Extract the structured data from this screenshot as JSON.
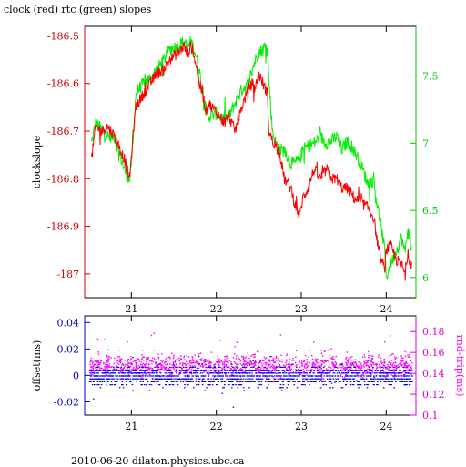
{
  "title": "clock (red) rtc (green) slopes",
  "footer": "2010-06-20 dilaton.physics.ubc.ca",
  "chart_data": [
    {
      "type": "line",
      "xlabel": "",
      "ylabel": "clockslope",
      "ylim": [
        -187.05,
        -186.48
      ],
      "y2lim": [
        5.85,
        7.87
      ],
      "xlim": [
        20.45,
        24.35
      ],
      "x_ticks": [
        21,
        22,
        23,
        24
      ],
      "x_tick_labels": [
        "21",
        "22",
        "23",
        "24"
      ],
      "y_ticks": [
        -186.5,
        -186.6,
        -186.7,
        -186.8,
        -186.9,
        -187
      ],
      "y_tick_labels": [
        "-186.5",
        "-186.6",
        "-186.7",
        "-186.8",
        "-186.9",
        "-187"
      ],
      "y2_ticks": [
        7.5,
        7,
        6.5,
        6
      ],
      "y2_tick_labels": [
        "7.5",
        "7",
        "6.5",
        "6"
      ],
      "series": [
        {
          "name": "clock",
          "axis": "left",
          "x": [
            20.53,
            20.58,
            20.65,
            20.72,
            20.8,
            20.85,
            20.92,
            20.98,
            21.02,
            21.05,
            21.08,
            21.15,
            21.22,
            21.3,
            21.38,
            21.45,
            21.52,
            21.58,
            21.62,
            21.66,
            21.7,
            21.75,
            21.8,
            21.85,
            21.88,
            21.9,
            22.0,
            22.08,
            22.15,
            22.22,
            22.3,
            22.38,
            22.42,
            22.46,
            22.5,
            22.55,
            22.6,
            22.62,
            22.66,
            22.7,
            22.75,
            22.8,
            22.88,
            22.92,
            22.98,
            23.02,
            23.08,
            23.15,
            23.22,
            23.3,
            23.36,
            23.42,
            23.48,
            23.55,
            23.62,
            23.7,
            23.78,
            23.85,
            23.92,
            23.98,
            24.0,
            24.05,
            24.12,
            24.18,
            24.22,
            24.25,
            24.3
          ],
          "y": [
            -186.76,
            -186.69,
            -186.7,
            -186.69,
            -186.71,
            -186.73,
            -186.76,
            -186.8,
            -186.71,
            -186.65,
            -186.64,
            -186.62,
            -186.6,
            -186.58,
            -186.57,
            -186.55,
            -186.54,
            -186.53,
            -186.52,
            -186.54,
            -186.52,
            -186.55,
            -186.6,
            -186.63,
            -186.66,
            -186.64,
            -186.66,
            -186.68,
            -186.67,
            -186.7,
            -186.65,
            -186.61,
            -186.6,
            -186.61,
            -186.58,
            -186.6,
            -186.62,
            -186.7,
            -186.72,
            -186.73,
            -186.75,
            -186.8,
            -186.82,
            -186.85,
            -186.88,
            -186.84,
            -186.82,
            -186.78,
            -186.8,
            -186.78,
            -186.8,
            -186.8,
            -186.82,
            -186.82,
            -186.84,
            -186.85,
            -186.86,
            -186.88,
            -186.96,
            -186.99,
            -186.95,
            -186.94,
            -186.97,
            -186.98,
            -187.0,
            -186.96,
            -186.98
          ]
        },
        {
          "name": "rtc",
          "axis": "right",
          "x": [
            20.53,
            20.58,
            20.65,
            20.72,
            20.8,
            20.85,
            20.92,
            20.98,
            21.02,
            21.05,
            21.08,
            21.15,
            21.22,
            21.3,
            21.38,
            21.45,
            21.52,
            21.58,
            21.62,
            21.66,
            21.7,
            21.75,
            21.8,
            21.85,
            21.88,
            21.9,
            22.0,
            22.08,
            22.15,
            22.22,
            22.3,
            22.38,
            22.42,
            22.46,
            22.5,
            22.55,
            22.6,
            22.62,
            22.66,
            22.7,
            22.75,
            22.8,
            22.88,
            22.92,
            22.98,
            23.02,
            23.08,
            23.15,
            23.22,
            23.3,
            23.36,
            23.42,
            23.48,
            23.55,
            23.62,
            23.7,
            23.78,
            23.85,
            23.92,
            23.98,
            24.0,
            24.05,
            24.12,
            24.18,
            24.22,
            24.25,
            24.3
          ],
          "y": [
            7.0,
            7.15,
            7.1,
            7.05,
            7.05,
            6.95,
            6.8,
            6.72,
            7.0,
            7.35,
            7.4,
            7.45,
            7.48,
            7.55,
            7.62,
            7.7,
            7.72,
            7.74,
            7.76,
            7.7,
            7.76,
            7.68,
            7.55,
            7.3,
            7.25,
            7.2,
            7.22,
            7.18,
            7.2,
            7.3,
            7.4,
            7.45,
            7.55,
            7.62,
            7.68,
            7.7,
            7.75,
            7.45,
            7.1,
            7.0,
            6.95,
            6.95,
            6.85,
            6.85,
            6.88,
            6.95,
            6.98,
            7.0,
            7.05,
            7.0,
            7.02,
            7.05,
            6.95,
            7.02,
            6.95,
            6.85,
            6.7,
            6.72,
            6.45,
            6.22,
            6.0,
            6.1,
            6.2,
            6.3,
            6.18,
            6.35,
            6.25
          ]
        }
      ],
      "colors": {
        "clock": "#ff0000",
        "rtc": "#00ee00",
        "left_axis": "#cc0000",
        "right_axis": "#00cc00"
      }
    },
    {
      "type": "scatter",
      "ylabel": "offset(ms)",
      "y2label": "rnd-trip(ms)",
      "ylim": [
        -0.03,
        0.045
      ],
      "y2lim": [
        0.1,
        0.195
      ],
      "xlim": [
        20.45,
        24.35
      ],
      "x_ticks": [
        21,
        22,
        23,
        24
      ],
      "x_tick_labels": [
        "21",
        "22",
        "23",
        "24"
      ],
      "y_ticks": [
        0.04,
        0.02,
        0,
        -0.02
      ],
      "y_tick_labels": [
        "0.04",
        "0.02",
        "0",
        "-0.02"
      ],
      "y2_ticks": [
        0.18,
        0.16,
        0.14,
        0.12,
        0.1
      ],
      "y2_tick_labels": [
        "0.18",
        "0.16",
        "0.14",
        "0.12",
        "0.1"
      ],
      "series": [
        {
          "name": "offset",
          "axis": "left",
          "x_range": [
            20.5,
            24.3
          ],
          "center": 0.0,
          "spread": 0.008
        },
        {
          "name": "rnd-trip",
          "axis": "right",
          "x_range": [
            20.5,
            24.3
          ],
          "center": 0.148,
          "spread": 0.009
        }
      ],
      "colors": {
        "offset": "#0000ff",
        "rnd-trip": "#ff00ff",
        "left_axis": "#0000cc",
        "right_axis": "#dd00dd"
      }
    }
  ]
}
